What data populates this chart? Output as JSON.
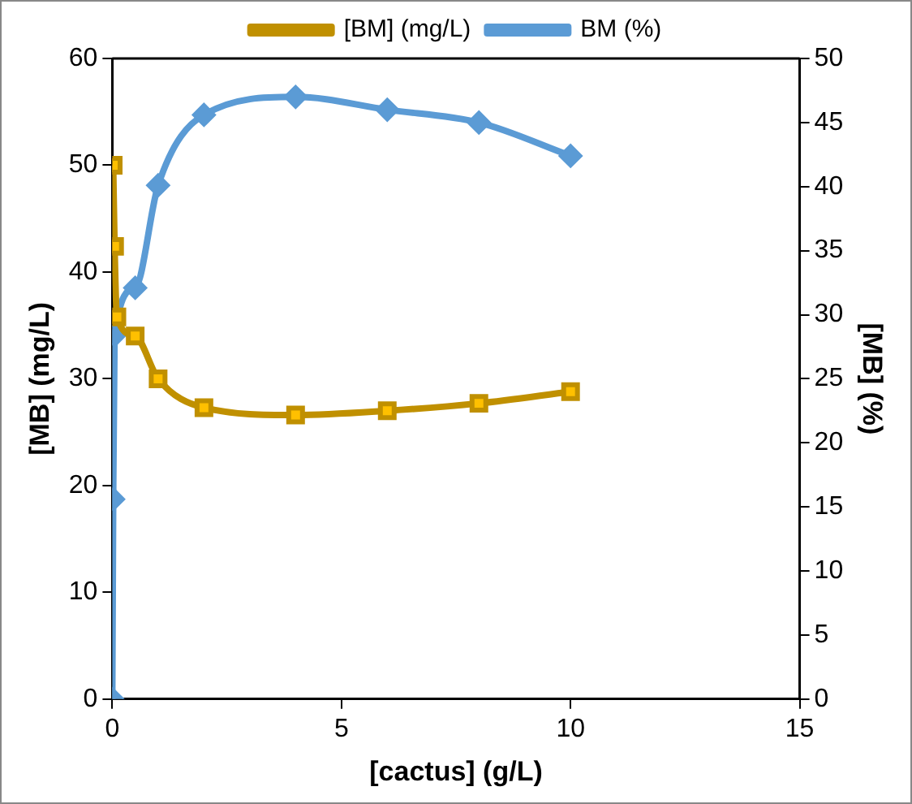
{
  "chart_data": {
    "type": "line",
    "xlabel": "[cactus] (g/L)",
    "ylabel": "[MB] (mg/L)",
    "y2label": "[MB] (%)",
    "xlim": [
      0,
      15
    ],
    "xticks": [
      0,
      5,
      10,
      15
    ],
    "ylim": [
      0,
      60
    ],
    "yticks": [
      0,
      10,
      20,
      30,
      40,
      50,
      60
    ],
    "y2lim": [
      0,
      50
    ],
    "y2ticks": [
      0,
      5,
      10,
      15,
      20,
      25,
      30,
      35,
      40,
      45,
      50
    ],
    "legend": "top",
    "grid": false,
    "series": [
      {
        "name": "[BM] (mg/L)",
        "color": "#c09000",
        "marker": "square",
        "x": [
          0.02,
          0.05,
          0.1,
          0.5,
          1,
          2,
          4,
          6,
          8,
          10
        ],
        "values": [
          50,
          42.4,
          35.8,
          34,
          30,
          27.3,
          26.6,
          27,
          27.7,
          28.8
        ]
      },
      {
        "name": "BM (%)",
        "color": "#5b9bd5",
        "marker": "diamond",
        "axis": "y2",
        "x": [
          0,
          0.02,
          0.05,
          0.5,
          1,
          2,
          4,
          6,
          8,
          10
        ],
        "values": [
          0,
          15.6,
          28.4,
          32.1,
          40.1,
          45.6,
          47,
          46,
          45,
          42.4
        ]
      }
    ]
  }
}
